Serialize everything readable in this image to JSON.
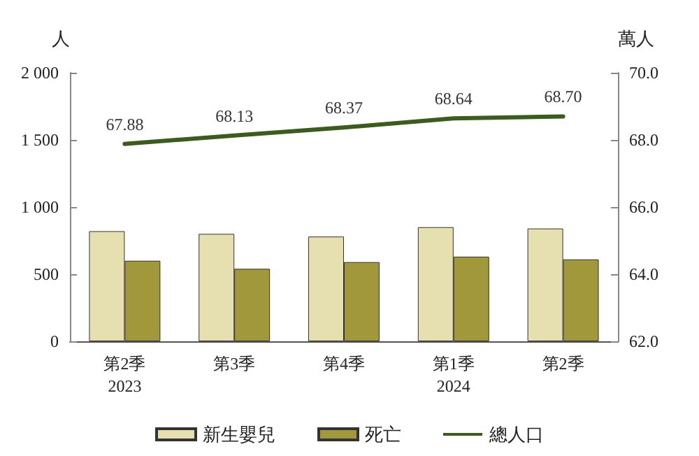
{
  "chart_data": {
    "type": "bar",
    "ylabel": "人",
    "y2label": "萬人",
    "categories": [
      "第2季\n2023",
      "第3季",
      "第4季",
      "第1季\n2024",
      "第2季"
    ],
    "series": [
      {
        "name": "新生嬰兒",
        "color": "#e6e0b0",
        "values": [
          820,
          800,
          780,
          850,
          840
        ]
      },
      {
        "name": "死亡",
        "color": "#a0983a",
        "values": [
          600,
          540,
          590,
          630,
          610
        ]
      },
      {
        "name": "總人口",
        "type": "line",
        "axis": "y2",
        "color": "#3d5a1f",
        "values": [
          67.88,
          68.13,
          68.37,
          68.64,
          68.7
        ],
        "value_labels": [
          "67.88",
          "68.13",
          "68.37",
          "68.64",
          "68.70"
        ]
      }
    ],
    "ylim": [
      0,
      2000
    ],
    "yticks": [
      {
        "value": 0,
        "label": "0"
      },
      {
        "value": 500,
        "label": "500"
      },
      {
        "value": 1000,
        "label": "1 000"
      },
      {
        "value": 1500,
        "label": "1 500"
      },
      {
        "value": 2000,
        "label": "2 000"
      }
    ],
    "y2lim": [
      62,
      70
    ],
    "y2ticks": [
      {
        "value": 62,
        "label": "62.0"
      },
      {
        "value": 64,
        "label": "64.0"
      },
      {
        "value": 66,
        "label": "66.0"
      },
      {
        "value": 68,
        "label": "68.0"
      },
      {
        "value": 70,
        "label": "70.0"
      }
    ],
    "grid": false,
    "legend": "bottom",
    "marker": "none",
    "line_style": "solid"
  }
}
